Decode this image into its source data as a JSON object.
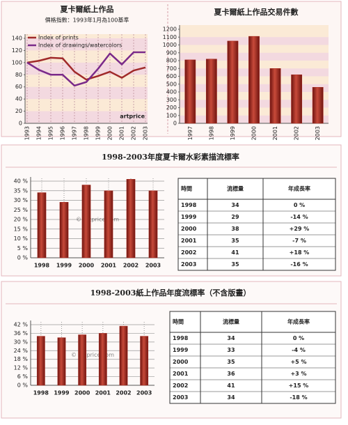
{
  "chart_data": [
    {
      "type": "line",
      "title": "夏卡爾紙上作品",
      "subtitle": "價格指數：1993年1月為100基準",
      "annotation": "artprice",
      "categories": [
        "1993",
        "1994",
        "1995",
        "1996",
        "1997",
        "1998",
        "1999",
        "2000",
        "2001",
        "2002",
        "2003"
      ],
      "series": [
        {
          "name": "Index of prints",
          "color": "#a02a2a",
          "values": [
            100,
            103,
            108,
            107,
            85,
            72,
            78,
            85,
            75,
            87,
            92
          ]
        },
        {
          "name": "Index of drawings/watercolors",
          "color": "#7a2a8a",
          "values": [
            100,
            88,
            80,
            80,
            62,
            68,
            90,
            115,
            97,
            117,
            117
          ]
        }
      ],
      "ylim": [
        0,
        140
      ],
      "yticks": [
        0,
        20,
        40,
        60,
        80,
        100,
        120,
        140
      ],
      "grid": "bands"
    },
    {
      "type": "bar",
      "title": "夏卡爾紙上作品交易件數",
      "categories": [
        "1997",
        "1998",
        "1999",
        "2000",
        "2001",
        "2002",
        "2003"
      ],
      "values": [
        810,
        820,
        1050,
        1110,
        700,
        620,
        460
      ],
      "color": "#a8281e",
      "ylim": [
        0,
        1200
      ],
      "yticks": [
        0,
        100,
        200,
        300,
        400,
        500,
        600,
        700,
        800,
        900,
        1000,
        1100,
        1200
      ],
      "grid": "bands"
    },
    {
      "type": "bar",
      "title": "1998-2003年度夏卡爾水彩素描流標率",
      "watermark": "© Artprice.com",
      "categories": [
        "1998",
        "1999",
        "2000",
        "2001",
        "2002",
        "2003"
      ],
      "values": [
        34,
        29,
        38,
        35,
        41,
        35
      ],
      "color": "#a8281e",
      "ylim": [
        0,
        40
      ],
      "yticks": [
        {
          "value": 0,
          "label": "0 %"
        },
        {
          "value": 5,
          "label": "5 %"
        },
        {
          "value": 10,
          "label": "10 %"
        },
        {
          "value": 15,
          "label": "15 %"
        },
        {
          "value": 20,
          "label": "20 %"
        },
        {
          "value": 25,
          "label": "25 %"
        },
        {
          "value": 30,
          "label": "30 %"
        },
        {
          "value": 35,
          "label": "35 %"
        },
        {
          "value": 40,
          "label": "40 %"
        }
      ],
      "grid": "lines"
    },
    {
      "type": "bar",
      "title": "1998-2003紙上作品年度流標率（不含版畫）",
      "watermark": "© Artprice.com",
      "categories": [
        "1998",
        "1999",
        "2000",
        "2001",
        "2002",
        "2003"
      ],
      "values": [
        34,
        33,
        35,
        36,
        41,
        34
      ],
      "color": "#a8281e",
      "ylim": [
        0,
        42
      ],
      "yticks": [
        {
          "value": 0,
          "label": "0 %"
        },
        {
          "value": 6,
          "label": "6 %"
        },
        {
          "value": 12,
          "label": "12 %"
        },
        {
          "value": 18,
          "label": "18 %"
        },
        {
          "value": 24,
          "label": "24 %"
        },
        {
          "value": 30,
          "label": "30 %"
        },
        {
          "value": 36,
          "label": "36 %"
        },
        {
          "value": 42,
          "label": "42 %"
        }
      ],
      "grid": "lines"
    }
  ],
  "tables": [
    {
      "headers": [
        "時間",
        "流標量",
        "年成長率"
      ],
      "rows": [
        [
          "1998",
          "34",
          "0 %"
        ],
        [
          "1999",
          "29",
          "-14 %"
        ],
        [
          "2000",
          "38",
          "+29 %"
        ],
        [
          "2001",
          "35",
          "-7 %"
        ],
        [
          "2002",
          "41",
          "+18 %"
        ],
        [
          "2003",
          "35",
          "-16 %"
        ]
      ]
    },
    {
      "headers": [
        "時間",
        "流標量",
        "年成長率"
      ],
      "rows": [
        [
          "1998",
          "34",
          "0 %"
        ],
        [
          "1999",
          "33",
          "-4 %"
        ],
        [
          "2000",
          "35",
          "+5 %"
        ],
        [
          "2001",
          "36",
          "+3 %"
        ],
        [
          "2002",
          "41",
          "+15 %"
        ],
        [
          "2003",
          "34",
          "-18 %"
        ]
      ]
    }
  ]
}
